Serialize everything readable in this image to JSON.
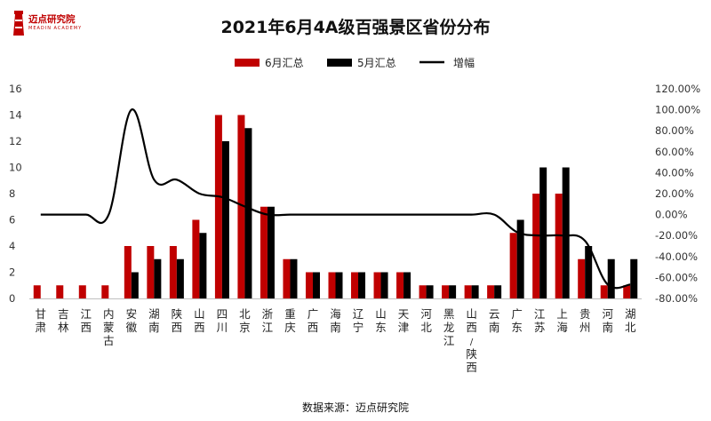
{
  "brand": {
    "name": "迈点研究院",
    "tagline": "MEADIN ACADEMY"
  },
  "source_note": "数据来源：迈点研究院",
  "colors": {
    "june": "#c00000",
    "may": "#000000",
    "growth": "#000000"
  },
  "chart_data": {
    "type": "bar",
    "title": "2021年6月4A级百强景区省份分布",
    "categories": [
      "甘肃",
      "吉林",
      "江西",
      "内蒙古",
      "安徽",
      "湖南",
      "陕西",
      "山西",
      "四川",
      "北京",
      "浙江",
      "重庆",
      "广西",
      "海南",
      "辽宁",
      "山东",
      "天津",
      "河北",
      "黑龙江",
      "山西/陕西",
      "云南",
      "广东",
      "江苏",
      "上海",
      "贵州",
      "河南",
      "湖北"
    ],
    "series": [
      {
        "name": "6月汇总",
        "type": "bar",
        "axis": "left",
        "values": [
          1,
          1,
          1,
          1,
          4,
          4,
          4,
          6,
          14,
          14,
          7,
          3,
          2,
          2,
          2,
          2,
          2,
          1,
          1,
          1,
          1,
          5,
          8,
          8,
          3,
          1,
          1
        ]
      },
      {
        "name": "5月汇总",
        "type": "bar",
        "axis": "left",
        "values": [
          0,
          0,
          0,
          0,
          2,
          3,
          3,
          5,
          12,
          13,
          7,
          3,
          2,
          2,
          2,
          2,
          2,
          1,
          1,
          1,
          1,
          6,
          10,
          10,
          4,
          3,
          3
        ]
      },
      {
        "name": "增幅",
        "type": "line",
        "axis": "right",
        "values": [
          0,
          0,
          0,
          0,
          1.0,
          0.333,
          0.333,
          0.2,
          0.167,
          0.077,
          0,
          0,
          0,
          0,
          0,
          0,
          0,
          0,
          0,
          0,
          0,
          -0.167,
          -0.2,
          -0.2,
          -0.25,
          -0.667,
          -0.667
        ]
      }
    ],
    "y_left": {
      "range": [
        0,
        16
      ],
      "ticks": [
        "0",
        "2",
        "4",
        "6",
        "8",
        "10",
        "12",
        "14",
        "16"
      ]
    },
    "y_right": {
      "range": [
        -0.8,
        1.2
      ],
      "ticks": [
        "-80.00%",
        "-60.00%",
        "-40.00%",
        "-20.00%",
        "0.00%",
        "20.00%",
        "40.00%",
        "60.00%",
        "80.00%",
        "100.00%",
        "120.00%"
      ]
    },
    "legend": {
      "placement": "top-center",
      "entries": [
        "6月汇总",
        "5月汇总",
        "增幅"
      ]
    },
    "grid": false
  }
}
